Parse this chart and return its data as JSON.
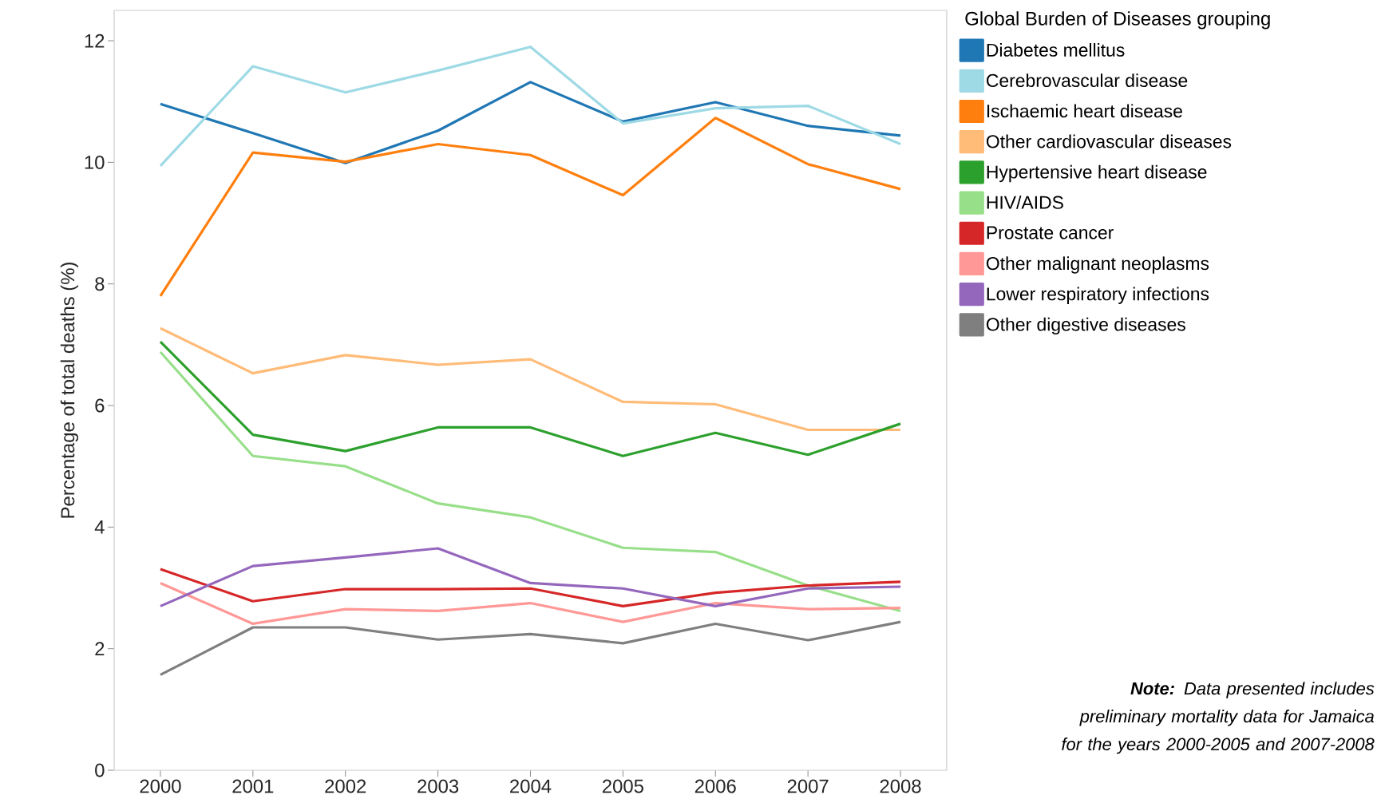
{
  "chart_data": {
    "type": "line",
    "ylabel": "Percentage of total deaths (%)",
    "legend_title": "Global Burden of Diseases grouping",
    "categories": [
      "2000",
      "2001",
      "2002",
      "2003",
      "2004",
      "2005",
      "2006",
      "2007",
      "2008"
    ],
    "ylim": [
      0,
      12.5
    ],
    "yticks": [
      0,
      2,
      4,
      6,
      8,
      10,
      12
    ],
    "legend": "right",
    "grid": false,
    "series": [
      {
        "name": "Diabetes mellitus",
        "color": "#1f77b4",
        "values": [
          10.96,
          10.48,
          9.99,
          10.52,
          11.32,
          10.67,
          10.99,
          10.6,
          10.44
        ]
      },
      {
        "name": "Cerebrovascular disease",
        "color": "#9edae5",
        "values": [
          9.94,
          11.58,
          11.15,
          11.51,
          11.9,
          10.64,
          10.89,
          10.93,
          10.3
        ]
      },
      {
        "name": "Ischaemic heart disease",
        "color": "#ff7f0e",
        "values": [
          7.8,
          10.16,
          10.01,
          10.3,
          10.12,
          9.46,
          10.73,
          9.97,
          9.56
        ]
      },
      {
        "name": "Other cardiovascular diseases",
        "color": "#ffbb78",
        "values": [
          7.27,
          6.53,
          6.83,
          6.67,
          6.76,
          6.06,
          6.02,
          5.6,
          5.6
        ]
      },
      {
        "name": "Hypertensive heart disease",
        "color": "#2ca02c",
        "values": [
          7.05,
          5.52,
          5.25,
          5.64,
          5.64,
          5.17,
          5.55,
          5.19,
          5.7
        ]
      },
      {
        "name": "HIV/AIDS",
        "color": "#98df8a",
        "values": [
          6.88,
          5.17,
          5.0,
          4.39,
          4.16,
          3.66,
          3.59,
          3.04,
          2.62
        ]
      },
      {
        "name": "Prostate cancer",
        "color": "#d62728",
        "values": [
          3.31,
          2.78,
          2.98,
          2.98,
          2.99,
          2.7,
          2.92,
          3.04,
          3.1
        ]
      },
      {
        "name": "Other malignant neoplasms",
        "color": "#ff9896",
        "values": [
          3.08,
          2.41,
          2.65,
          2.62,
          2.75,
          2.44,
          2.75,
          2.65,
          2.67
        ]
      },
      {
        "name": "Lower respiratory infections",
        "color": "#9467bd",
        "values": [
          2.7,
          3.36,
          3.5,
          3.65,
          3.08,
          2.99,
          2.7,
          2.99,
          3.02
        ]
      },
      {
        "name": "Other digestive diseases",
        "color": "#7f7f7f",
        "values": [
          1.57,
          2.35,
          2.35,
          2.15,
          2.24,
          2.09,
          2.41,
          2.14,
          2.44
        ]
      }
    ],
    "annotations": [
      "**Note:** Data presented includes preliminary mortality data for Jamaica for the years 2000-2005 and 2007-2008"
    ]
  }
}
